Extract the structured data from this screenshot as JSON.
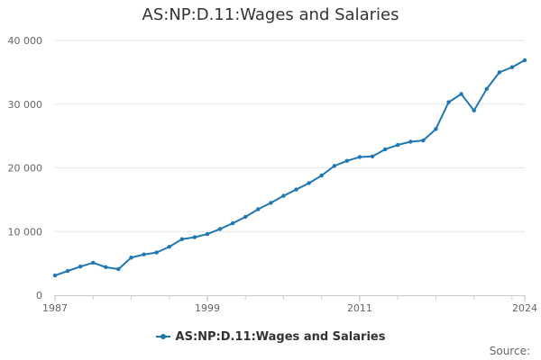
{
  "chart_data": {
    "type": "line",
    "title": "AS:NP:D.11:Wages and Salaries",
    "xlabel": "",
    "ylabel": "",
    "x": [
      1987,
      1988,
      1989,
      1990,
      1991,
      1992,
      1993,
      1994,
      1995,
      1996,
      1997,
      1998,
      1999,
      2000,
      2001,
      2002,
      2003,
      2004,
      2005,
      2006,
      2007,
      2008,
      2009,
      2010,
      2011,
      2012,
      2013,
      2014,
      2015,
      2016,
      2017,
      2018,
      2019,
      2020,
      2021,
      2022,
      2023,
      2024
    ],
    "series": [
      {
        "name": "AS:NP:D.11:Wages and Salaries",
        "color": "#1f77b4",
        "values": [
          3100,
          3800,
          4500,
          5100,
          4400,
          4100,
          5900,
          6400,
          6700,
          7600,
          8800,
          9100,
          9600,
          10400,
          11300,
          12300,
          13500,
          14500,
          15600,
          16600,
          17600,
          18800,
          20300,
          21100,
          21700,
          21800,
          22900,
          23600,
          24100,
          24300,
          26100,
          30300,
          31600,
          29000,
          32400,
          35000,
          35800,
          36900
        ]
      }
    ],
    "xlim": [
      1987,
      2024
    ],
    "ylim": [
      0,
      40000
    ],
    "x_ticks": [
      1987,
      1999,
      2011,
      2024
    ],
    "y_ticks": [
      0,
      10000,
      20000,
      30000,
      40000
    ],
    "y_tick_labels": [
      "0",
      "10 000",
      "20 000",
      "30 000",
      "40 000"
    ],
    "grid": "horizontal",
    "legend": "bottom-center"
  },
  "source_label": "Source:"
}
